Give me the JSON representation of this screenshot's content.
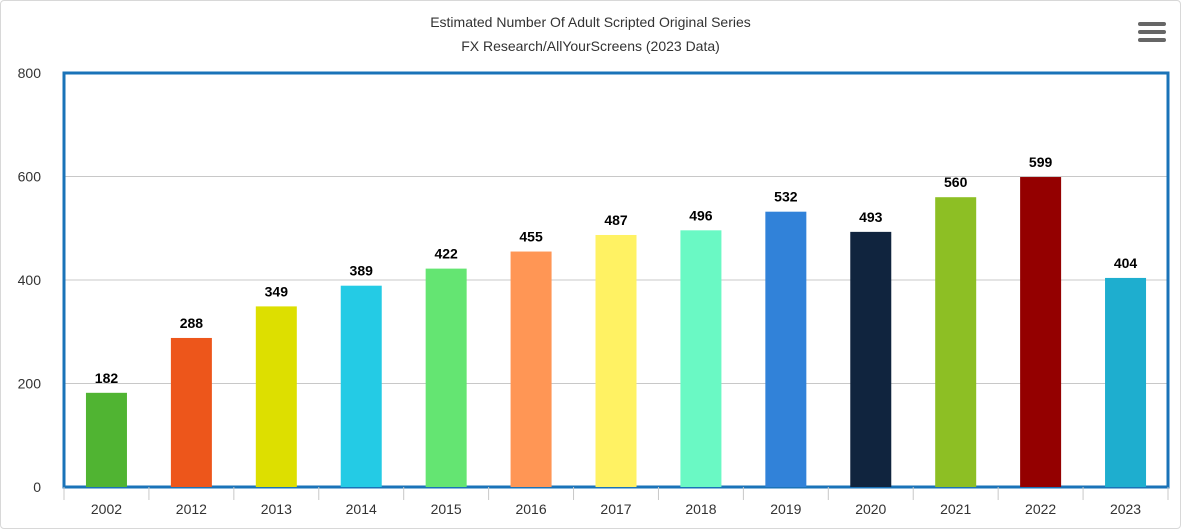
{
  "chart_data": {
    "type": "bar",
    "title": "Estimated Number Of Adult Scripted Original Series",
    "subtitle": "FX Research/AllYourScreens (2023 Data)",
    "xlabel": "",
    "ylabel": "",
    "ylim": [
      0,
      800
    ],
    "yticks": [
      "0",
      "200",
      "400",
      "600",
      "800"
    ],
    "grid": true,
    "legend": "none",
    "categories": [
      "2002",
      "2012",
      "2013",
      "2014",
      "2015",
      "2016",
      "2017",
      "2018",
      "2019",
      "2020",
      "2021",
      "2022",
      "2023"
    ],
    "values": [
      182,
      288,
      349,
      389,
      422,
      455,
      487,
      496,
      532,
      493,
      560,
      599,
      404
    ],
    "colors": [
      "#50b432",
      "#ed561b",
      "#dddf00",
      "#24cbe5",
      "#64e572",
      "#ff9655",
      "#fff263",
      "#6af9c4",
      "#3182d9",
      "#10243e",
      "#8dbf24",
      "#940000",
      "#1eaecf"
    ]
  },
  "menu": {
    "icon": "hamburger-menu-icon"
  }
}
